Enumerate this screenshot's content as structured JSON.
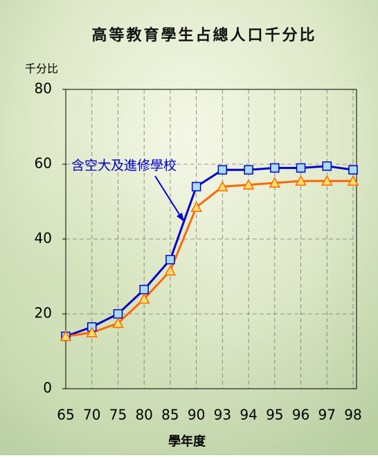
{
  "chart_data": {
    "type": "line",
    "title": "高等教育學生占總人口千分比",
    "y_label": "千分比",
    "x_label": "學年度",
    "categories": [
      "65",
      "70",
      "75",
      "80",
      "85",
      "90",
      "93",
      "94",
      "95",
      "96",
      "97",
      "98"
    ],
    "series": [
      {
        "name": "含空大及進修學校",
        "color": "#0000cc",
        "marker_fill": "#a8dcf5",
        "marker": "square",
        "values": [
          14,
          16.5,
          20,
          26.5,
          34.5,
          54,
          58.5,
          58.5,
          59,
          59,
          59.5,
          58.5
        ]
      },
      {
        "color": "#ff6600",
        "marker_fill": "#ffe066",
        "marker": "triangle",
        "values": [
          14,
          15,
          17.5,
          24,
          31.5,
          48.5,
          54,
          54.5,
          55,
          55.5,
          55.5,
          55.5
        ]
      }
    ],
    "ylim": [
      0,
      80
    ],
    "yticks": [
      0,
      20,
      40,
      60,
      80
    ],
    "grid": true
  }
}
